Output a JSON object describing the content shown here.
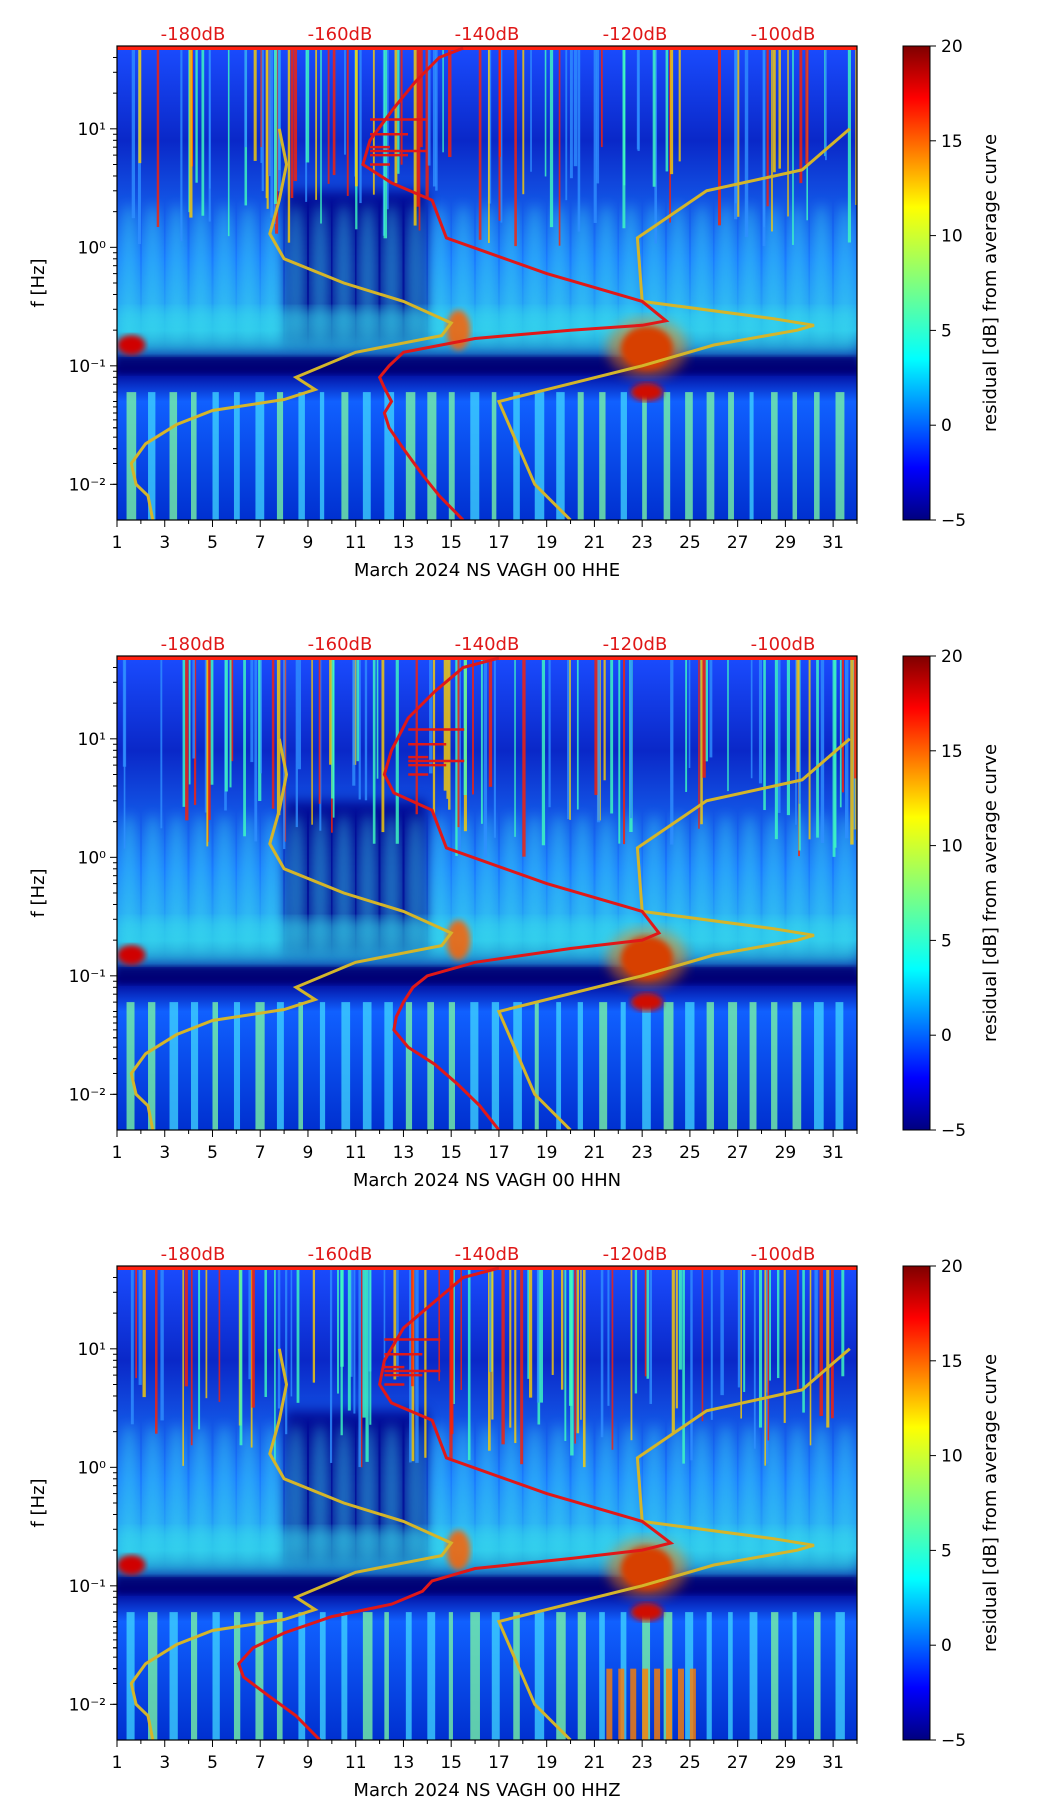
{
  "colors": {
    "noise_model": "#d4b52a",
    "average_curve": "#e01818",
    "db_label": "#e01818",
    "colormap": [
      "#00007f",
      "#0000ff",
      "#007fff",
      "#00ffff",
      "#7fff7f",
      "#ffff00",
      "#ff7f00",
      "#ff0000",
      "#7f0000"
    ]
  },
  "chart_data": [
    {
      "type": "heatmap",
      "xlabel": "March 2024 NS VAGH 00 HHE",
      "ylabel": "f [Hz]",
      "xlim": [
        1,
        32
      ],
      "ylim": [
        0.005,
        50
      ],
      "yscale": "log",
      "x_ticks": [
        "1",
        "3",
        "5",
        "7",
        "9",
        "11",
        "13",
        "15",
        "17",
        "19",
        "21",
        "23",
        "25",
        "27",
        "29",
        "31"
      ],
      "y_ticks": [
        "10⁻²",
        "10⁻¹",
        "10⁰",
        "10¹"
      ],
      "db_axis_labels": [
        "-180dB",
        "-160dB",
        "-140dB",
        "-120dB",
        "-100dB"
      ],
      "colorbar": {
        "label": "residual [dB] from average curve",
        "range": [
          -5,
          20
        ],
        "ticks": [
          "20",
          "15",
          "10",
          "5",
          "0",
          "−5"
        ]
      },
      "average_curve": {
        "x": [
          15.5,
          14.5,
          13.8,
          13,
          12.4,
          12.2,
          12.5,
          12.2,
          12,
          12.4,
          13,
          16,
          20,
          23,
          24,
          23,
          19,
          14.8,
          14.2,
          12.5,
          11.3,
          11.6,
          12.6,
          13.5,
          14.5,
          15.5
        ],
        "y": [
          0.005,
          0.008,
          0.012,
          0.02,
          0.03,
          0.04,
          0.05,
          0.065,
          0.08,
          0.1,
          0.13,
          0.17,
          0.2,
          0.22,
          0.24,
          0.35,
          0.6,
          1.2,
          2.5,
          3.5,
          5,
          8,
          15,
          25,
          40,
          48
        ]
      },
      "noise_model": {
        "x": [
          2.5,
          2.3,
          1.8,
          1.6,
          2.2,
          3.5,
          5,
          8,
          9.3,
          8.5,
          11,
          14.6,
          15,
          13,
          10.5,
          8,
          7.4,
          7.8,
          8.1,
          7.8
        ],
        "y": [
          0.005,
          0.008,
          0.01,
          0.015,
          0.022,
          0.032,
          0.042,
          0.052,
          0.063,
          0.08,
          0.13,
          0.18,
          0.23,
          0.35,
          0.5,
          0.8,
          1.3,
          2.5,
          5,
          10
        ]
      },
      "noise_model_high": {
        "x": [
          20,
          18.5,
          17,
          23,
          26,
          29.5,
          30.2,
          28.5,
          23,
          22.8,
          25.7,
          29.7,
          31.7
        ],
        "y": [
          0.005,
          0.01,
          0.05,
          0.1,
          0.15,
          0.2,
          0.22,
          0.25,
          0.35,
          1.2,
          3,
          4.5,
          10
        ]
      }
    },
    {
      "type": "heatmap",
      "xlabel": "March 2024 NS VAGH 00 HHN",
      "ylabel": "f [Hz]",
      "xlim": [
        1,
        32
      ],
      "ylim": [
        0.005,
        50
      ],
      "yscale": "log",
      "x_ticks": [
        "1",
        "3",
        "5",
        "7",
        "9",
        "11",
        "13",
        "15",
        "17",
        "19",
        "21",
        "23",
        "25",
        "27",
        "29",
        "31"
      ],
      "y_ticks": [
        "10⁻²",
        "10⁻¹",
        "10⁰",
        "10¹"
      ],
      "db_axis_labels": [
        "-180dB",
        "-160dB",
        "-140dB",
        "-120dB",
        "-100dB"
      ],
      "colorbar": {
        "label": "residual [dB] from average curve",
        "range": [
          -5,
          20
        ],
        "ticks": [
          "20",
          "15",
          "10",
          "5",
          "0",
          "−5"
        ]
      },
      "average_curve": {
        "x": [
          17,
          16.2,
          15.3,
          14.3,
          13.2,
          12.6,
          12.7,
          13,
          13.4,
          14,
          16,
          20,
          23,
          23.7,
          23,
          19,
          14.8,
          14.2,
          12.6,
          12.2,
          12.5,
          13.2,
          14.3,
          15.5,
          17
        ],
        "y": [
          0.005,
          0.008,
          0.012,
          0.018,
          0.025,
          0.035,
          0.045,
          0.06,
          0.08,
          0.1,
          0.13,
          0.17,
          0.2,
          0.23,
          0.35,
          0.6,
          1.2,
          2.5,
          3.5,
          5,
          8,
          15,
          25,
          40,
          48
        ]
      },
      "noise_model": {
        "x": [
          2.5,
          2.3,
          1.8,
          1.6,
          2.2,
          3.5,
          5,
          8,
          9.3,
          8.5,
          11,
          14.6,
          15,
          13,
          10.5,
          8,
          7.4,
          7.8,
          8.1,
          7.8
        ],
        "y": [
          0.005,
          0.008,
          0.01,
          0.015,
          0.022,
          0.032,
          0.042,
          0.052,
          0.063,
          0.08,
          0.13,
          0.18,
          0.23,
          0.35,
          0.5,
          0.8,
          1.3,
          2.5,
          5,
          10
        ]
      },
      "noise_model_high": {
        "x": [
          20,
          18.5,
          17,
          23,
          26,
          29.5,
          30.2,
          28.5,
          23,
          22.8,
          25.7,
          29.7,
          31.7
        ],
        "y": [
          0.005,
          0.01,
          0.05,
          0.1,
          0.15,
          0.2,
          0.22,
          0.25,
          0.35,
          1.2,
          3,
          4.5,
          10
        ]
      }
    },
    {
      "type": "heatmap",
      "xlabel": "March 2024 NS VAGH 00 HHZ",
      "ylabel": "f [Hz]",
      "xlim": [
        1,
        32
      ],
      "ylim": [
        0.005,
        50
      ],
      "yscale": "log",
      "x_ticks": [
        "1",
        "3",
        "5",
        "7",
        "9",
        "11",
        "13",
        "15",
        "17",
        "19",
        "21",
        "23",
        "25",
        "27",
        "29",
        "31"
      ],
      "y_ticks": [
        "10⁻²",
        "10⁻¹",
        "10⁰",
        "10¹"
      ],
      "db_axis_labels": [
        "-180dB",
        "-160dB",
        "-140dB",
        "-120dB",
        "-100dB"
      ],
      "colorbar": {
        "label": "residual [dB] from average curve",
        "range": [
          -5,
          20
        ],
        "ticks": [
          "20",
          "15",
          "10",
          "5",
          "0",
          "−5"
        ]
      },
      "average_curve": {
        "x": [
          9.5,
          8.5,
          7.3,
          6.3,
          6.1,
          6.7,
          8,
          10,
          12.5,
          13.8,
          14.2,
          16,
          20,
          23,
          24.2,
          23,
          19,
          14.8,
          14.2,
          12.5,
          12,
          12.2,
          13,
          14.3,
          15.5,
          17
        ],
        "y": [
          0.005,
          0.008,
          0.012,
          0.017,
          0.022,
          0.03,
          0.04,
          0.055,
          0.07,
          0.09,
          0.11,
          0.14,
          0.17,
          0.2,
          0.23,
          0.35,
          0.6,
          1.2,
          2.5,
          3.5,
          5,
          8,
          15,
          25,
          40,
          48
        ]
      },
      "noise_model": {
        "x": [
          2.5,
          2.3,
          1.8,
          1.6,
          2.2,
          3.5,
          5,
          8,
          9.3,
          8.5,
          11,
          14.6,
          15,
          13,
          10.5,
          8,
          7.4,
          7.8,
          8.1,
          7.8
        ],
        "y": [
          0.005,
          0.008,
          0.01,
          0.015,
          0.022,
          0.032,
          0.042,
          0.052,
          0.063,
          0.08,
          0.13,
          0.18,
          0.23,
          0.35,
          0.5,
          0.8,
          1.3,
          2.5,
          5,
          10
        ]
      },
      "noise_model_high": {
        "x": [
          20,
          18.5,
          17,
          23,
          26,
          29.5,
          30.2,
          28.5,
          23,
          22.8,
          25.7,
          29.7,
          31.7
        ],
        "y": [
          0.005,
          0.01,
          0.05,
          0.1,
          0.15,
          0.2,
          0.22,
          0.25,
          0.35,
          1.2,
          3,
          4.5,
          10
        ]
      }
    }
  ]
}
